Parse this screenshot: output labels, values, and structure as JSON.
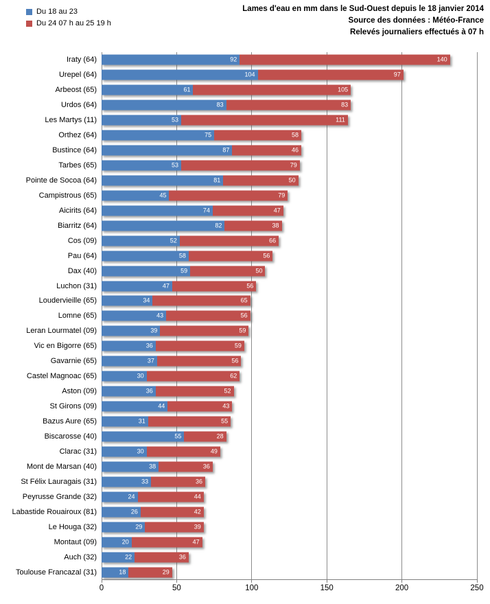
{
  "header": {
    "title": "Lames d'eau en mm dans le Sud-Ouest depuis le 18 janvier  2014",
    "subtitle1": "Source des données : Météo-France",
    "subtitle2": "Relevés journaliers effectués à 07 h"
  },
  "legend": [
    {
      "label": "Du 18 au 23",
      "color": "#4F81BD"
    },
    {
      "label": "Du 24 07 h au 25 19 h",
      "color": "#C0504D"
    }
  ],
  "colors": {
    "series1": "#4F81BD",
    "series2": "#C0504D",
    "gridline": "#8c8c8c",
    "axis": "#808080",
    "value_text": "#ffffff"
  },
  "chart_data": {
    "type": "bar",
    "orientation": "horizontal",
    "stacked": true,
    "title": "Lames d'eau en mm dans le Sud-Ouest depuis le 18 janvier  2014",
    "xlabel": "",
    "ylabel": "",
    "xlim": [
      0,
      250
    ],
    "xticks": [
      0,
      50,
      100,
      150,
      200,
      250
    ],
    "grid": true,
    "legend_position": "top-left",
    "data_labels": "inside-end",
    "categories": [
      "Iraty (64)",
      "Urepel (64)",
      "Arbeost (65)",
      "Urdos (64)",
      "Les Martys (11)",
      "Orthez (64)",
      "Bustince (64)",
      "Tarbes (65)",
      "Pointe de Socoa (64)",
      "Campistrous (65)",
      "Aicirits (64)",
      "Biarritz (64)",
      "Cos (09)",
      "Pau (64)",
      "Dax (40)",
      "Luchon (31)",
      "Loudervieille (65)",
      "Lomne (65)",
      "Leran Lourmatel (09)",
      "Vic en Bigorre (65)",
      "Gavarnie (65)",
      "Castel Magnoac (65)",
      "Aston (09)",
      "St Girons (09)",
      "Bazus Aure (65)",
      "Biscarosse (40)",
      "Clarac (31)",
      "Mont de Marsan (40)",
      "St Félix Lauragais (31)",
      "Peyrusse Grande (32)",
      "Labastide Rouairoux (81)",
      "Le Houga (32)",
      "Montaut (09)",
      "Auch (32)",
      "Toulouse Francazal (31)"
    ],
    "series": [
      {
        "name": "Du 18 au 23",
        "color": "#4F81BD",
        "values": [
          92,
          104,
          61,
          83,
          53,
          75,
          87,
          53,
          81,
          45,
          74,
          82,
          52,
          58,
          59,
          47,
          34,
          43,
          39,
          36,
          37,
          30,
          36,
          44,
          31,
          55,
          30,
          38,
          33,
          24,
          26,
          29,
          20,
          22,
          18
        ]
      },
      {
        "name": "Du 24 07 h au 25 19 h",
        "color": "#C0504D",
        "values": [
          140,
          97,
          105,
          83,
          111,
          58,
          46,
          79,
          50,
          79,
          47,
          38,
          66,
          56,
          50,
          56,
          65,
          56,
          59,
          59,
          56,
          62,
          52,
          43,
          55,
          28,
          49,
          36,
          36,
          44,
          42,
          39,
          47,
          36,
          29
        ]
      }
    ]
  }
}
